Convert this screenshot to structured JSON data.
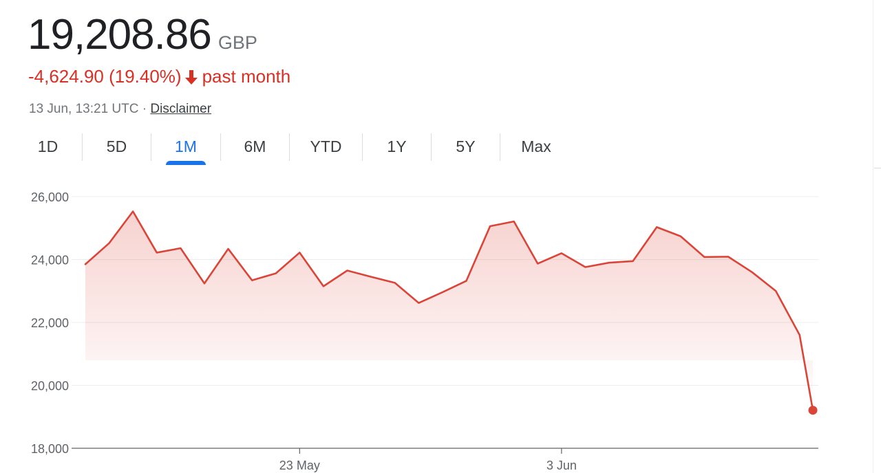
{
  "quote": {
    "price": "19,208.86",
    "currency": "GBP",
    "change": "-4,624.90 (19.40%)",
    "change_direction": "down",
    "change_period": "past month",
    "change_color": "#d93025",
    "timestamp": "13 Jun, 13:21 UTC",
    "separator": "·",
    "disclaimer": "Disclaimer"
  },
  "tabs": [
    {
      "label": "1D",
      "active": false
    },
    {
      "label": "5D",
      "active": false
    },
    {
      "label": "1M",
      "active": true
    },
    {
      "label": "6M",
      "active": false
    },
    {
      "label": "YTD",
      "active": false
    },
    {
      "label": "1Y",
      "active": false
    },
    {
      "label": "5Y",
      "active": false
    },
    {
      "label": "Max",
      "active": false
    }
  ],
  "chart_data": {
    "type": "area",
    "title": "",
    "xlabel": "",
    "ylabel": "",
    "ylim": [
      18000,
      26000
    ],
    "y_ticks": [
      26000,
      24000,
      22000,
      20000,
      18000
    ],
    "y_tick_labels": [
      "26,000",
      "24,000",
      "22,000",
      "20,000",
      "18,000"
    ],
    "x_range": [
      "2022-05-14",
      "2022-06-13"
    ],
    "x_ticks": [
      {
        "date": "2022-05-23",
        "label": "23 May"
      },
      {
        "date": "2022-06-03",
        "label": "3 Jun"
      }
    ],
    "grid": true,
    "line_color": "#db4437",
    "fill_color": "#db4437",
    "series": [
      {
        "points": [
          [
            "2022-05-14",
            23850
          ],
          [
            "2022-05-15",
            24520
          ],
          [
            "2022-05-16",
            25530
          ],
          [
            "2022-05-17",
            24220
          ],
          [
            "2022-05-18",
            24360
          ],
          [
            "2022-05-19",
            23240
          ],
          [
            "2022-05-20",
            24340
          ],
          [
            "2022-05-21",
            23340
          ],
          [
            "2022-05-22",
            23560
          ],
          [
            "2022-05-23",
            24220
          ],
          [
            "2022-05-24",
            23150
          ],
          [
            "2022-05-25",
            23650
          ],
          [
            "2022-05-26",
            23450
          ],
          [
            "2022-05-27",
            23260
          ],
          [
            "2022-05-28",
            22620
          ],
          [
            "2022-05-29",
            22960
          ],
          [
            "2022-05-30",
            23320
          ],
          [
            "2022-05-31",
            25060
          ],
          [
            "2022-06-01",
            25210
          ],
          [
            "2022-06-02",
            23870
          ],
          [
            "2022-06-03",
            24200
          ],
          [
            "2022-06-04",
            23760
          ],
          [
            "2022-06-05",
            23900
          ],
          [
            "2022-06-06",
            23950
          ],
          [
            "2022-06-07",
            25030
          ],
          [
            "2022-06-08",
            24740
          ],
          [
            "2022-06-09",
            24080
          ],
          [
            "2022-06-10",
            24090
          ],
          [
            "2022-06-11",
            23600
          ],
          [
            "2022-06-12",
            23000
          ],
          [
            "2022-06-13",
            21600
          ],
          [
            "2022-06-13T13:21",
            19208.86
          ]
        ]
      }
    ]
  }
}
